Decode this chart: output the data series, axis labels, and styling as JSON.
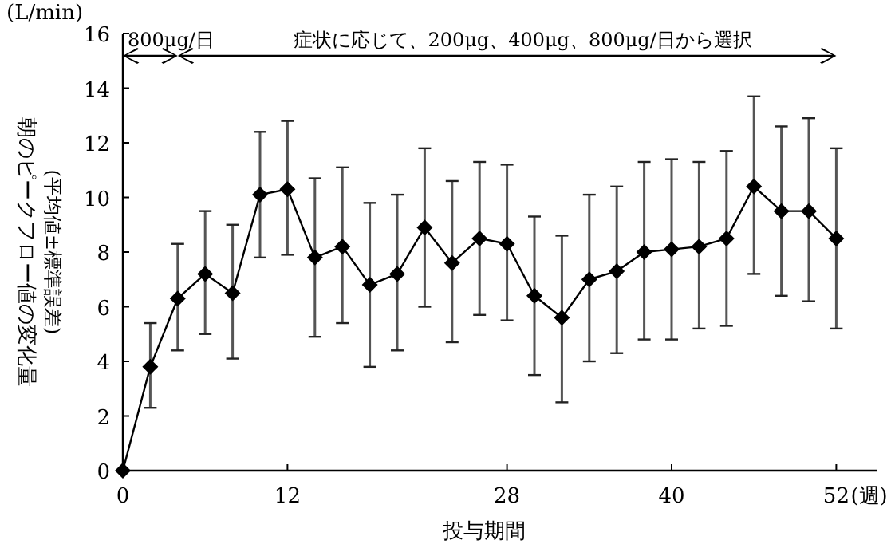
{
  "chart_data": {
    "type": "line",
    "ylabel": "朝のピークフロー値の変化量\n(平均値±標準誤差)",
    "xlabel": "投与期間",
    "annotations": [
      "(L/min)",
      "(週)",
      "800μg/日",
      "症状に応じて、200μg、400μg、800μg/日から選択"
    ],
    "x": [
      0,
      2,
      4,
      6,
      8,
      10,
      12,
      14,
      16,
      18,
      20,
      22,
      24,
      26,
      28,
      30,
      32,
      34,
      36,
      38,
      40,
      42,
      44,
      46,
      48,
      50,
      52
    ],
    "series": [
      {
        "color": "#000000",
        "values": [
          0,
          3.8,
          6.3,
          7.2,
          6.5,
          10.1,
          10.3,
          7.8,
          8.2,
          6.8,
          7.2,
          8.9,
          7.6,
          8.5,
          8.3,
          6.4,
          5.6,
          7.0,
          7.3,
          8.0,
          8.1,
          8.2,
          8.5,
          10.4,
          9.5,
          9.5,
          8.5
        ],
        "errors": [
          null,
          [
            2.3,
            5.4
          ],
          [
            4.4,
            8.3
          ],
          [
            5.0,
            9.5
          ],
          [
            4.1,
            9.0
          ],
          [
            7.8,
            12.4
          ],
          [
            7.9,
            12.8
          ],
          [
            4.9,
            10.7
          ],
          [
            5.4,
            11.1
          ],
          [
            3.8,
            9.8
          ],
          [
            4.4,
            10.1
          ],
          [
            6.0,
            11.8
          ],
          [
            4.7,
            10.6
          ],
          [
            5.7,
            11.3
          ],
          [
            5.5,
            11.2
          ],
          [
            3.5,
            9.3
          ],
          [
            2.5,
            8.6
          ],
          [
            4.0,
            10.1
          ],
          [
            4.3,
            10.4
          ],
          [
            4.8,
            11.3
          ],
          [
            4.8,
            11.4
          ],
          [
            5.2,
            11.3
          ],
          [
            5.3,
            11.7
          ],
          [
            7.2,
            13.7
          ],
          [
            6.4,
            12.6
          ],
          [
            6.2,
            12.9
          ],
          [
            5.2,
            11.8
          ]
        ]
      }
    ],
    "xlim": [
      0,
      55
    ],
    "ylim": [
      0,
      16
    ],
    "xticks": [
      0,
      12,
      28,
      40,
      52
    ],
    "yticks": [
      0,
      2,
      4,
      6,
      8,
      10,
      12,
      14,
      16
    ],
    "marker": "diamond",
    "line_style": "solid",
    "grid": false
  }
}
